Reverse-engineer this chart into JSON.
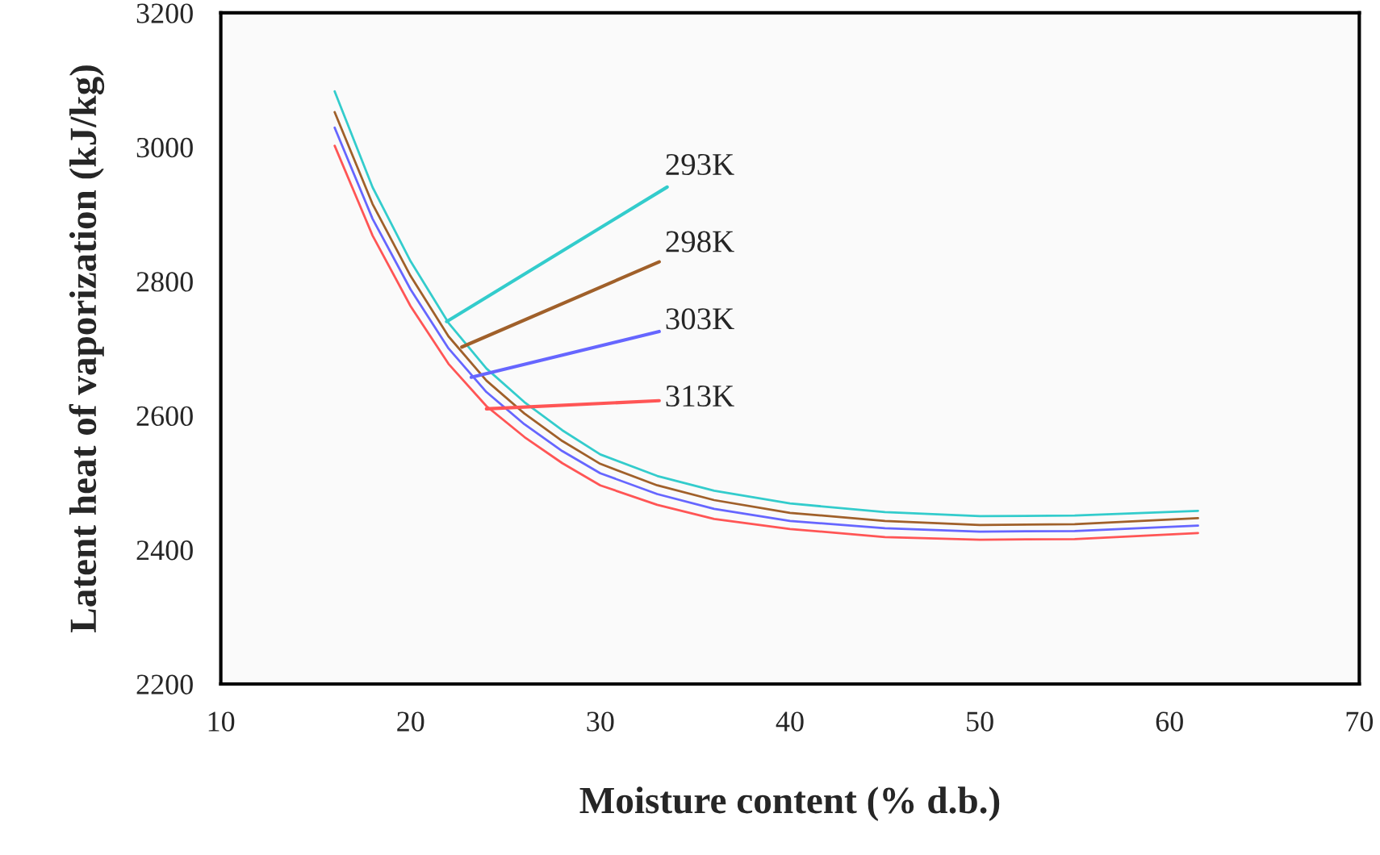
{
  "chart_data": {
    "type": "line",
    "xlabel": "Moisture content (% d.b.)",
    "ylabel": "Latent heat of vaporization (kJ/kg)",
    "x": [
      16,
      18,
      20,
      22,
      24,
      26,
      28,
      30,
      33,
      36,
      40,
      45,
      50,
      55,
      61.5
    ],
    "series": [
      {
        "color": "#33cccc",
        "values": [
          3083,
          2940,
          2830,
          2738,
          2670,
          2620,
          2578,
          2542,
          2510,
          2488,
          2469,
          2456,
          2450,
          2451,
          2458
        ]
      },
      {
        "color": "#a0602a",
        "values": [
          3052,
          2915,
          2808,
          2718,
          2652,
          2603,
          2562,
          2528,
          2496,
          2474,
          2455,
          2443,
          2437,
          2438,
          2447
        ]
      },
      {
        "color": "#6666ff",
        "values": [
          3029,
          2893,
          2788,
          2700,
          2635,
          2587,
          2547,
          2514,
          2483,
          2461,
          2443,
          2432,
          2427,
          2428,
          2436
        ]
      },
      {
        "color": "#ff5555",
        "values": [
          3002,
          2868,
          2763,
          2677,
          2614,
          2568,
          2529,
          2496,
          2467,
          2446,
          2431,
          2419,
          2415,
          2416,
          2425
        ]
      }
    ],
    "annotations": [
      {
        "text": "293K",
        "x": 21.9,
        "y": 2740
      },
      {
        "text": "298K",
        "x": 22.7,
        "y": 2702
      },
      {
        "text": "303K",
        "x": 23.2,
        "y": 2657
      },
      {
        "text": "313K",
        "x": 24.0,
        "y": 2610
      }
    ],
    "xlim": [
      10,
      70
    ],
    "xticks": [
      10,
      20,
      30,
      40,
      50,
      60,
      70
    ],
    "ylim": [
      2200,
      3200
    ],
    "yticks": [
      2200,
      2400,
      2600,
      2800,
      3000,
      3200
    ],
    "grid": false,
    "legend": false
  }
}
